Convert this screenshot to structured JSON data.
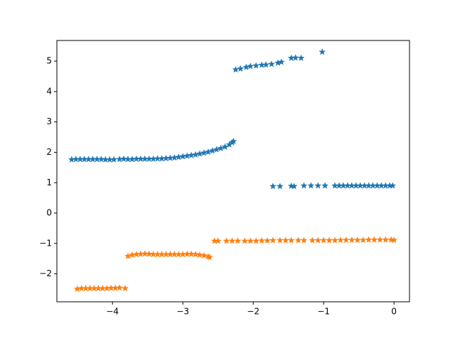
{
  "chart_data": {
    "type": "scatter",
    "xlim": [
      -4.79,
      0.22
    ],
    "ylim": [
      -2.92,
      5.68
    ],
    "xticks": [
      {
        "value": -4,
        "label": "−4"
      },
      {
        "value": -3,
        "label": "−3"
      },
      {
        "value": -2,
        "label": "−2"
      },
      {
        "value": -1,
        "label": "−1"
      },
      0
    ],
    "yticks": [
      {
        "value": -2,
        "label": "−2"
      },
      {
        "value": -1,
        "label": "−1"
      },
      0,
      1,
      2,
      3,
      4,
      5
    ],
    "marker": "star",
    "series": [
      {
        "color": "#1f77b4",
        "x": [
          -4.58,
          -4.52,
          -4.46,
          -4.4,
          -4.34,
          -4.28,
          -4.22,
          -4.16,
          -4.1,
          -4.04,
          -3.98,
          -3.9,
          -3.84,
          -3.78,
          -3.72,
          -3.66,
          -3.6,
          -3.54,
          -3.48,
          -3.42,
          -3.36,
          -3.3,
          -3.24,
          -3.18,
          -3.12,
          -3.06,
          -3.0,
          -2.94,
          -2.88,
          -2.82,
          -2.76,
          -2.7,
          -2.64,
          -2.58,
          -2.52,
          -2.46,
          -2.4,
          -2.34,
          -2.3,
          -2.28,
          -2.25,
          -2.18,
          -2.1,
          -2.04,
          -1.96,
          -1.88,
          -1.82,
          -1.74,
          -1.65,
          -1.6,
          -1.46,
          -1.4,
          -1.32,
          -1.02,
          -1.72,
          -1.62,
          -1.46,
          -1.42,
          -1.28,
          -1.18,
          -1.08,
          -0.98,
          -0.84,
          -0.78,
          -0.72,
          -0.66,
          -0.6,
          -0.54,
          -0.48,
          -0.42,
          -0.36,
          -0.3,
          -0.24,
          -0.18,
          -0.12,
          -0.06,
          -0.02
        ],
        "values": [
          1.76,
          1.77,
          1.77,
          1.77,
          1.77,
          1.77,
          1.77,
          1.77,
          1.76,
          1.76,
          1.76,
          1.77,
          1.78,
          1.77,
          1.77,
          1.78,
          1.78,
          1.78,
          1.78,
          1.78,
          1.79,
          1.79,
          1.8,
          1.81,
          1.82,
          1.84,
          1.86,
          1.88,
          1.9,
          1.92,
          1.95,
          1.98,
          2.01,
          2.05,
          2.09,
          2.13,
          2.18,
          2.25,
          2.32,
          2.36,
          4.72,
          4.75,
          4.8,
          4.83,
          4.85,
          4.87,
          4.88,
          4.9,
          4.94,
          4.97,
          5.1,
          5.11,
          5.1,
          5.3,
          0.88,
          0.88,
          0.89,
          0.88,
          0.9,
          0.9,
          0.9,
          0.9,
          0.9,
          0.9,
          0.9,
          0.9,
          0.9,
          0.9,
          0.9,
          0.9,
          0.9,
          0.9,
          0.9,
          0.9,
          0.9,
          0.9,
          0.9
        ]
      },
      {
        "color": "#ff7f0e",
        "x": [
          -4.5,
          -4.44,
          -4.38,
          -4.32,
          -4.26,
          -4.2,
          -4.14,
          -4.08,
          -4.02,
          -3.96,
          -3.9,
          -3.82,
          -3.78,
          -3.72,
          -3.66,
          -3.6,
          -3.54,
          -3.48,
          -3.42,
          -3.36,
          -3.3,
          -3.24,
          -3.18,
          -3.12,
          -3.06,
          -3.0,
          -2.94,
          -2.88,
          -2.82,
          -2.76,
          -2.7,
          -2.64,
          -2.62,
          -2.55,
          -2.5,
          -2.38,
          -2.3,
          -2.22,
          -2.12,
          -2.04,
          -1.96,
          -1.88,
          -1.8,
          -1.72,
          -1.62,
          -1.54,
          -1.46,
          -1.36,
          -1.28,
          -1.16,
          -1.08,
          -1.0,
          -0.92,
          -0.84,
          -0.76,
          -0.68,
          -0.6,
          -0.52,
          -0.44,
          -0.36,
          -0.28,
          -0.2,
          -0.12,
          -0.04,
          0.0
        ],
        "values": [
          -2.5,
          -2.48,
          -2.48,
          -2.48,
          -2.48,
          -2.48,
          -2.48,
          -2.48,
          -2.47,
          -2.47,
          -2.46,
          -2.48,
          -1.42,
          -1.38,
          -1.36,
          -1.35,
          -1.34,
          -1.35,
          -1.36,
          -1.36,
          -1.36,
          -1.36,
          -1.36,
          -1.36,
          -1.36,
          -1.36,
          -1.35,
          -1.35,
          -1.36,
          -1.38,
          -1.4,
          -1.43,
          -1.46,
          -0.92,
          -0.92,
          -0.92,
          -0.92,
          -0.92,
          -0.92,
          -0.92,
          -0.92,
          -0.91,
          -0.91,
          -0.9,
          -0.9,
          -0.9,
          -0.9,
          -0.9,
          -0.9,
          -0.9,
          -0.9,
          -0.9,
          -0.9,
          -0.9,
          -0.89,
          -0.89,
          -0.89,
          -0.89,
          -0.89,
          -0.88,
          -0.88,
          -0.88,
          -0.88,
          -0.88,
          -0.89
        ]
      }
    ]
  }
}
